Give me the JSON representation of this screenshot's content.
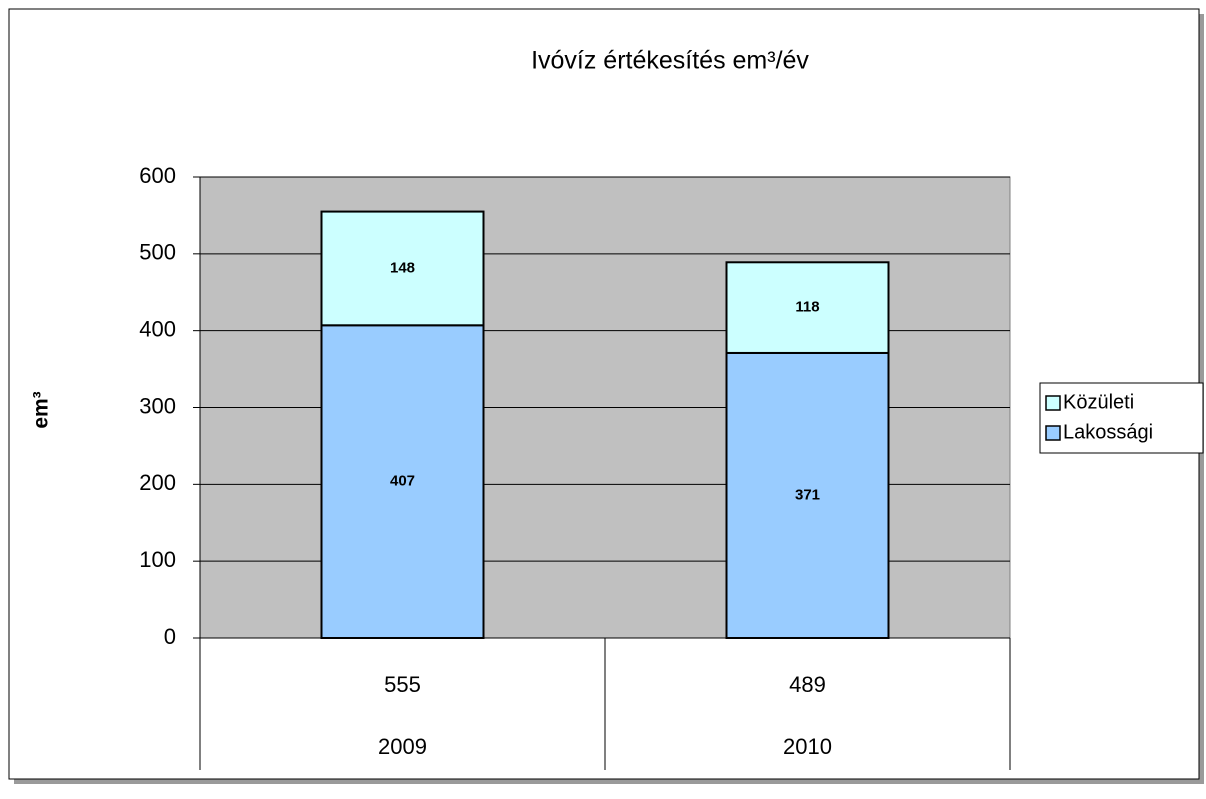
{
  "chart_data": {
    "type": "stacked-bar",
    "title": "Ivóvíz értékesítés em³/év",
    "y_label": "em³",
    "categories": [
      "2009",
      "2010"
    ],
    "category_totals": [
      "555",
      "489"
    ],
    "series": [
      {
        "name": "Lakossági",
        "color": "#99ccff",
        "values": [
          407,
          371
        ]
      },
      {
        "name": "Közületi",
        "color": "#ccffff",
        "values": [
          148,
          118
        ]
      }
    ],
    "ylim": [
      0,
      600
    ],
    "yticks": [
      0,
      100,
      200,
      300,
      400,
      500,
      600
    ],
    "grid": true,
    "legend": "right"
  }
}
